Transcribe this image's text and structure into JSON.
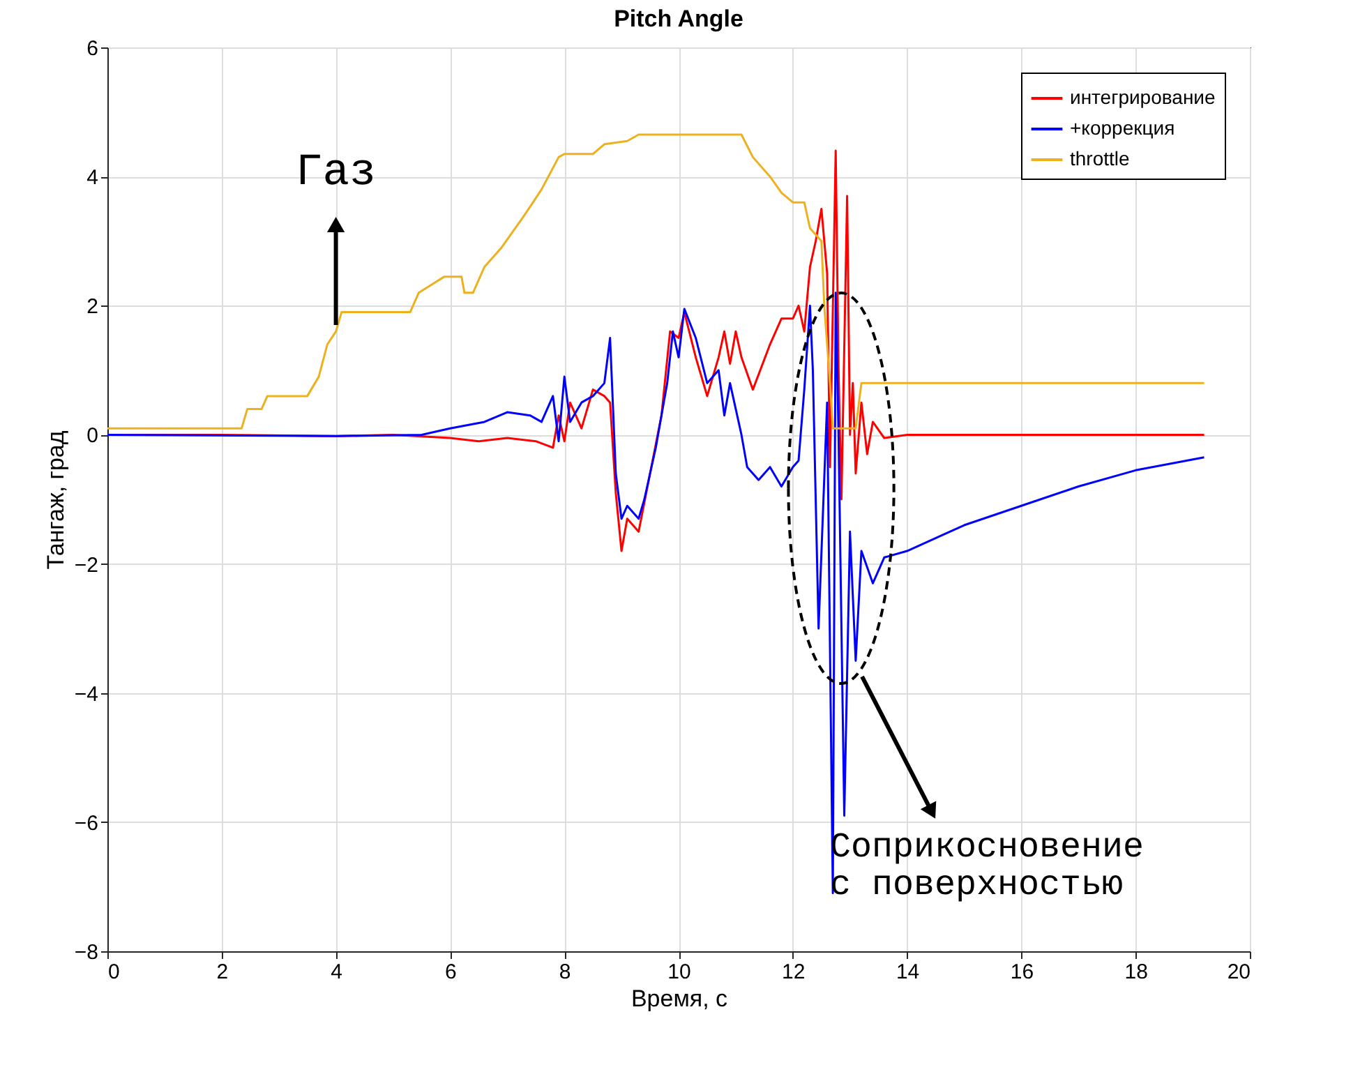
{
  "chart_data": {
    "type": "line",
    "title": "Pitch Angle",
    "xlabel": "Время, с",
    "ylabel": "Тангаж, град",
    "xlim": [
      0,
      20
    ],
    "xticks": [
      0,
      2,
      4,
      6,
      8,
      10,
      12,
      14,
      16,
      18,
      20
    ],
    "ylim": [
      -8,
      6
    ],
    "yticks": [
      -8,
      -6,
      -4,
      -2,
      0,
      2,
      4,
      6
    ],
    "grid": true,
    "legend": "top right",
    "line_style": "solid",
    "marker": "none",
    "series": [
      {
        "name": "интегрирование",
        "color": "#ff0000",
        "x": [
          0,
          2,
          4,
          5,
          6,
          6.5,
          7,
          7.5,
          7.8,
          7.9,
          8.0,
          8.1,
          8.3,
          8.5,
          8.7,
          8.8,
          8.9,
          9.0,
          9.1,
          9.3,
          9.5,
          9.7,
          9.85,
          10.0,
          10.1,
          10.3,
          10.5,
          10.7,
          10.8,
          10.9,
          11.0,
          11.1,
          11.3,
          11.6,
          11.8,
          12.0,
          12.1,
          12.2,
          12.3,
          12.4,
          12.5,
          12.6,
          12.65,
          12.75,
          12.8,
          12.85,
          12.95,
          13.0,
          13.05,
          13.1,
          13.2,
          13.3,
          13.4,
          13.6,
          14,
          19.2
        ],
        "values": [
          0,
          0,
          -0.02,
          0,
          -0.05,
          -0.1,
          -0.05,
          -0.1,
          -0.2,
          0.3,
          -0.1,
          0.5,
          0.1,
          0.7,
          0.6,
          0.5,
          -0.9,
          -1.8,
          -1.3,
          -1.5,
          -0.6,
          0.3,
          1.6,
          1.5,
          1.9,
          1.2,
          0.6,
          1.2,
          1.6,
          1.1,
          1.6,
          1.2,
          0.7,
          1.4,
          1.8,
          1.8,
          2.0,
          1.6,
          2.6,
          3.0,
          3.5,
          2.5,
          -0.5,
          4.4,
          1.0,
          -1.0,
          3.7,
          0,
          0.8,
          -0.6,
          0.5,
          -0.3,
          0.2,
          -0.05,
          0,
          0
        ]
      },
      {
        "name": "+коррекция",
        "color": "#0000ff",
        "x": [
          0,
          4,
          5.5,
          6,
          6.6,
          7,
          7.4,
          7.6,
          7.8,
          7.9,
          8.0,
          8.1,
          8.3,
          8.5,
          8.7,
          8.8,
          8.9,
          9.0,
          9.1,
          9.3,
          9.4,
          9.6,
          9.8,
          9.9,
          10.0,
          10.1,
          10.3,
          10.5,
          10.7,
          10.8,
          10.9,
          11.1,
          11.2,
          11.4,
          11.6,
          11.8,
          12.0,
          12.1,
          12.2,
          12.3,
          12.35,
          12.45,
          12.6,
          12.7,
          12.75,
          12.8,
          12.9,
          13.0,
          13.1,
          13.2,
          13.4,
          13.6,
          14,
          15,
          16,
          17,
          18,
          19.2
        ],
        "values": [
          0,
          -0.02,
          0,
          0.1,
          0.2,
          0.35,
          0.3,
          0.2,
          0.6,
          -0.1,
          0.9,
          0.2,
          0.5,
          0.6,
          0.8,
          1.5,
          -0.6,
          -1.3,
          -1.1,
          -1.3,
          -1.0,
          -0.2,
          0.8,
          1.6,
          1.2,
          1.95,
          1.5,
          0.8,
          1.0,
          0.3,
          0.8,
          0,
          -0.5,
          -0.7,
          -0.5,
          -0.8,
          -0.5,
          -0.4,
          0.7,
          2.0,
          1.0,
          -3.0,
          0.5,
          -7.1,
          2.2,
          0,
          -5.9,
          -1.5,
          -3.5,
          -1.8,
          -2.3,
          -1.9,
          -1.8,
          -1.4,
          -1.1,
          -0.8,
          -0.55,
          -0.35
        ]
      },
      {
        "name": "throttle",
        "color": "#edb120",
        "x": [
          0,
          2.35,
          2.45,
          2.7,
          2.8,
          3.5,
          3.7,
          3.85,
          4.0,
          4.1,
          5.3,
          5.45,
          5.9,
          6.2,
          6.25,
          6.4,
          6.6,
          6.9,
          7.3,
          7.6,
          7.9,
          8.0,
          8.5,
          8.7,
          9.1,
          9.3,
          11.1,
          11.3,
          11.6,
          11.8,
          12.0,
          12.2,
          12.3,
          12.5,
          12.55,
          12.65,
          12.7,
          13.1,
          13.2,
          19.2
        ],
        "values": [
          0.1,
          0.1,
          0.4,
          0.4,
          0.6,
          0.6,
          0.9,
          1.4,
          1.6,
          1.9,
          1.9,
          2.2,
          2.45,
          2.45,
          2.2,
          2.2,
          2.6,
          2.9,
          3.4,
          3.8,
          4.3,
          4.35,
          4.35,
          4.5,
          4.55,
          4.65,
          4.65,
          4.3,
          4.0,
          3.75,
          3.6,
          3.6,
          3.2,
          3.0,
          2.0,
          0.8,
          0.1,
          0.1,
          0.8,
          0.8
        ]
      }
    ],
    "annotations": [
      {
        "text": "Газ",
        "x": 4,
        "y": 1.7
      },
      {
        "text": "Соприкосновение\nс поверхностью",
        "x": 12.65,
        "y": -6.1
      }
    ]
  }
}
